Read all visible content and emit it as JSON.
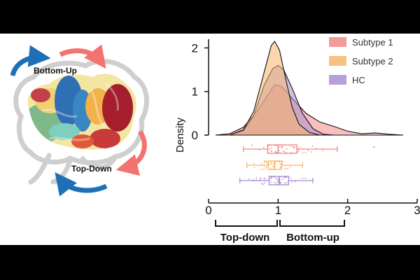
{
  "illustration": {
    "bottom_up_label": "Bottom-Up",
    "top_down_label": "Top-Down",
    "colors": {
      "blue_arrow": "#1f6fb7",
      "red_arrow": "#f2736f",
      "outline": "#cfcfcf"
    }
  },
  "chart_data": {
    "type": "density",
    "ylabel": "Density",
    "x_ticks": [
      "0",
      "1",
      "2",
      "3"
    ],
    "y_ticks": [
      "0",
      "1",
      "2"
    ],
    "xlim": [
      0,
      3
    ],
    "ylim": [
      0,
      2.2
    ],
    "legend_position": "top-right",
    "series": [
      {
        "name": "Subtype 1",
        "color": "#f28a86",
        "density": [
          [
            0.1,
            0.0
          ],
          [
            0.3,
            0.03
          ],
          [
            0.5,
            0.18
          ],
          [
            0.7,
            0.55
          ],
          [
            0.85,
            0.92
          ],
          [
            0.95,
            1.15
          ],
          [
            1.05,
            1.12
          ],
          [
            1.2,
            0.85
          ],
          [
            1.4,
            0.5
          ],
          [
            1.6,
            0.3
          ],
          [
            1.8,
            0.2
          ],
          [
            2.0,
            0.09
          ],
          [
            2.2,
            0.03
          ],
          [
            2.4,
            0.05
          ],
          [
            2.6,
            0.02
          ],
          [
            2.8,
            0.0
          ]
        ],
        "box": {
          "q1": 0.85,
          "median": 1.0,
          "q3": 1.27,
          "whisker_low": 0.5,
          "whisker_high": 1.85,
          "outliers": [
            2.38
          ]
        }
      },
      {
        "name": "Subtype 2",
        "color": "#f7b66b",
        "density": [
          [
            0.3,
            0.0
          ],
          [
            0.5,
            0.12
          ],
          [
            0.65,
            0.55
          ],
          [
            0.8,
            1.45
          ],
          [
            0.9,
            2.05
          ],
          [
            0.95,
            2.15
          ],
          [
            1.02,
            1.95
          ],
          [
            1.1,
            1.35
          ],
          [
            1.2,
            0.65
          ],
          [
            1.3,
            0.25
          ],
          [
            1.45,
            0.06
          ],
          [
            1.6,
            0.0
          ]
        ],
        "box": {
          "q1": 0.86,
          "median": 0.95,
          "q3": 1.05,
          "whisker_low": 0.55,
          "whisker_high": 1.35,
          "outliers": []
        }
      },
      {
        "name": "HC",
        "color": "#a98fd0",
        "density": [
          [
            0.3,
            0.0
          ],
          [
            0.5,
            0.1
          ],
          [
            0.65,
            0.45
          ],
          [
            0.8,
            1.15
          ],
          [
            0.92,
            1.52
          ],
          [
            1.0,
            1.6
          ],
          [
            1.08,
            1.5
          ],
          [
            1.2,
            1.08
          ],
          [
            1.35,
            0.5
          ],
          [
            1.5,
            0.15
          ],
          [
            1.65,
            0.02
          ],
          [
            1.8,
            0.0
          ]
        ],
        "box": {
          "q1": 0.87,
          "median": 1.02,
          "q3": 1.15,
          "whisker_low": 0.45,
          "whisker_high": 1.5,
          "outliers": []
        }
      }
    ]
  },
  "directions": {
    "top_down": "Top-down",
    "bottom_up": "Bottom-up"
  }
}
